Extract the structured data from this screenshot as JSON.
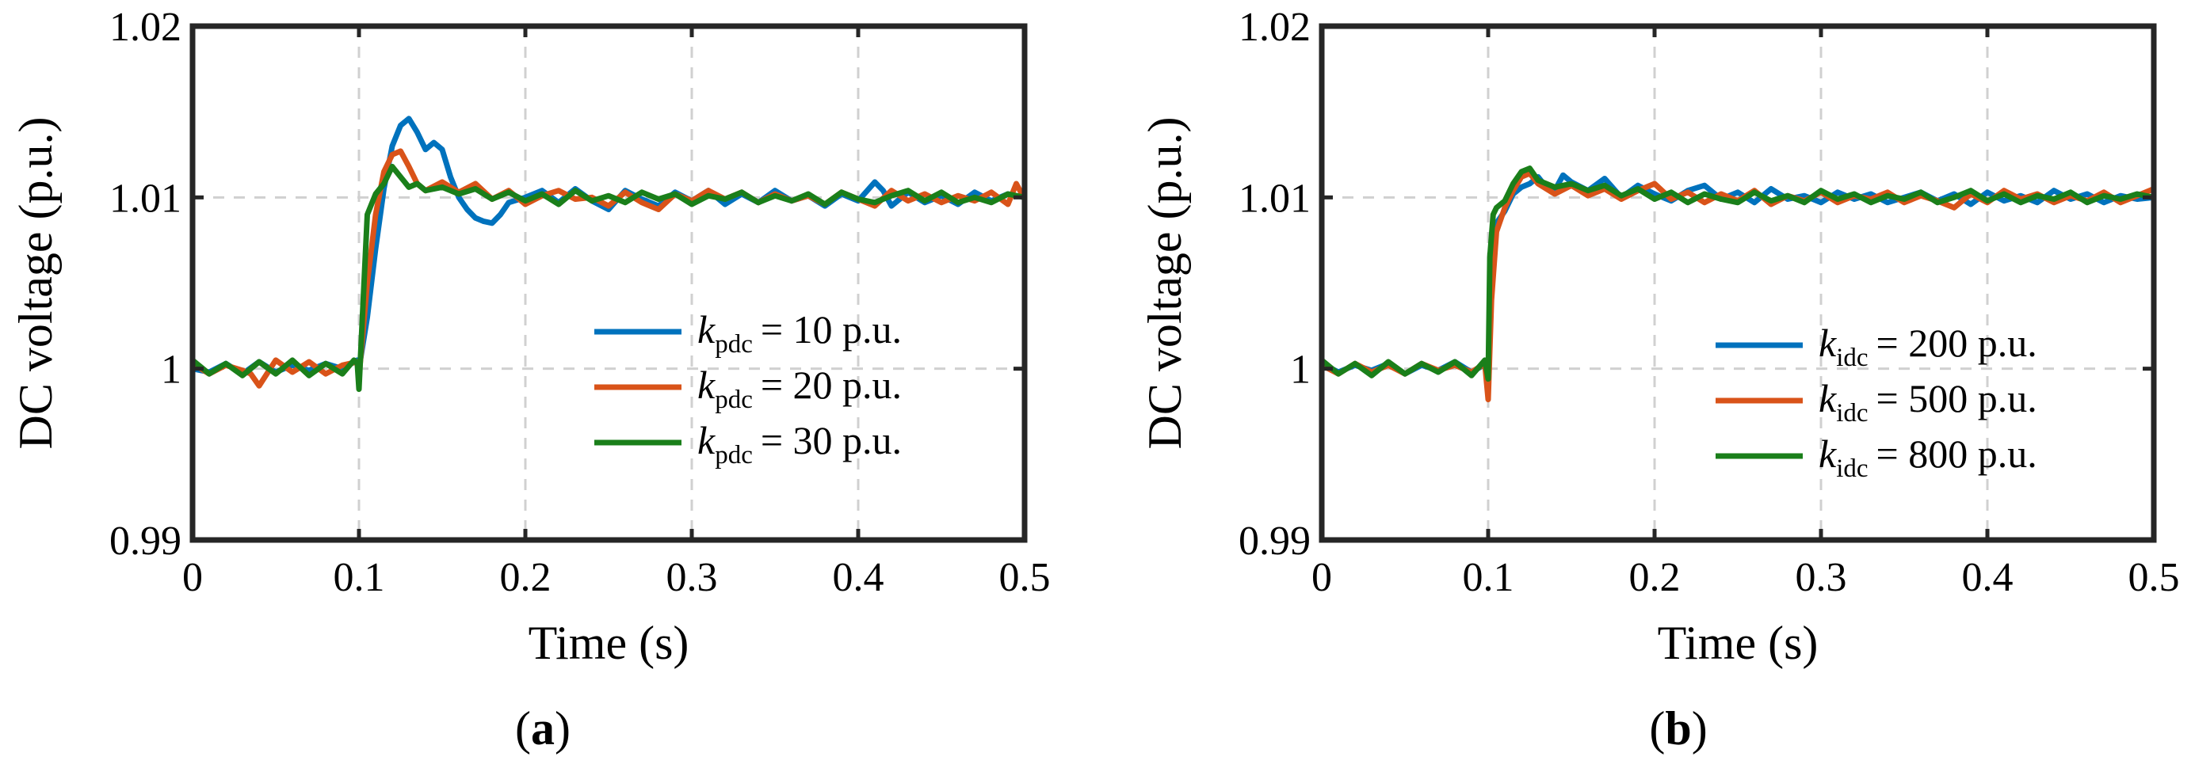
{
  "chart_data": [
    {
      "id": "a",
      "type": "line",
      "panel_label": "a",
      "xlabel": "Time (s)",
      "ylabel": "DC voltage (p.u.)",
      "xlim": [
        0,
        0.5
      ],
      "ylim": [
        0.99,
        1.02
      ],
      "xticks": [
        "0",
        "0.1",
        "0.2",
        "0.3",
        "0.4",
        "0.5"
      ],
      "yticks": [
        "0.99",
        "1",
        "1.01",
        "1.02"
      ],
      "grid": true,
      "legend_position": "center-right",
      "series": [
        {
          "sym": "k",
          "sub": "pdc",
          "value_text": "= 10 p.u.",
          "color": "#0072bd",
          "x": [
            0,
            0.01,
            0.02,
            0.03,
            0.04,
            0.05,
            0.06,
            0.07,
            0.08,
            0.09,
            0.099,
            0.1,
            0.105,
            0.11,
            0.115,
            0.12,
            0.125,
            0.13,
            0.135,
            0.14,
            0.145,
            0.15,
            0.155,
            0.16,
            0.165,
            0.17,
            0.175,
            0.18,
            0.185,
            0.19,
            0.2,
            0.21,
            0.22,
            0.23,
            0.24,
            0.25,
            0.26,
            0.27,
            0.28,
            0.29,
            0.3,
            0.31,
            0.32,
            0.33,
            0.34,
            0.35,
            0.36,
            0.37,
            0.38,
            0.39,
            0.4,
            0.41,
            0.415,
            0.42,
            0.43,
            0.44,
            0.45,
            0.46,
            0.47,
            0.48,
            0.49,
            0.5
          ],
          "y": [
            1.0,
            0.9998,
            1.0003,
            0.9997,
            1.0004,
            0.9998,
            1.0002,
            0.9999,
            1.0003,
            1.0,
            1.0005,
            1.0,
            1.003,
            1.007,
            1.0105,
            1.013,
            1.0142,
            1.0146,
            1.0138,
            1.0128,
            1.0132,
            1.0128,
            1.0112,
            1.01,
            1.0093,
            1.0088,
            1.0086,
            1.0085,
            1.009,
            1.0097,
            1.01,
            1.0104,
            1.0097,
            1.0105,
            1.0098,
            1.0093,
            1.0104,
            1.0099,
            1.0095,
            1.0103,
            1.0098,
            1.0104,
            1.0096,
            1.0102,
            1.0097,
            1.0104,
            1.0098,
            1.0101,
            1.0095,
            1.0102,
            1.0098,
            1.0109,
            1.0104,
            1.0095,
            1.0103,
            1.0097,
            1.0101,
            1.0096,
            1.0103,
            1.0098,
            1.0102,
            1.01
          ]
        },
        {
          "sym": "k",
          "sub": "pdc",
          "value_text": "= 20 p.u.",
          "color": "#d95319",
          "x": [
            0,
            0.01,
            0.02,
            0.03,
            0.035,
            0.04,
            0.05,
            0.06,
            0.07,
            0.08,
            0.09,
            0.099,
            0.1,
            0.105,
            0.11,
            0.115,
            0.12,
            0.125,
            0.13,
            0.135,
            0.14,
            0.15,
            0.16,
            0.17,
            0.18,
            0.19,
            0.2,
            0.21,
            0.22,
            0.23,
            0.24,
            0.25,
            0.26,
            0.27,
            0.28,
            0.29,
            0.3,
            0.31,
            0.32,
            0.33,
            0.34,
            0.35,
            0.36,
            0.37,
            0.38,
            0.39,
            0.4,
            0.41,
            0.42,
            0.43,
            0.44,
            0.45,
            0.46,
            0.47,
            0.48,
            0.49,
            0.495,
            0.5
          ],
          "y": [
            1.0003,
            0.9997,
            1.0002,
            0.9999,
            0.9997,
            0.999,
            1.0005,
            0.9998,
            1.0004,
            0.9997,
            1.0002,
            1.0004,
            0.9995,
            1.005,
            1.009,
            1.0115,
            1.0125,
            1.0127,
            1.0118,
            1.0108,
            1.0104,
            1.0109,
            1.0103,
            1.0108,
            1.0099,
            1.0104,
            1.0096,
            1.0101,
            1.0104,
            1.0099,
            1.01,
            1.0095,
            1.0103,
            1.0097,
            1.0093,
            1.0102,
            1.0098,
            1.0104,
            1.0099,
            1.0103,
            1.0097,
            1.0102,
            1.0098,
            1.0101,
            1.0096,
            1.0103,
            1.0099,
            1.0095,
            1.0104,
            1.0098,
            1.0102,
            1.0097,
            1.0101,
            1.0098,
            1.0103,
            1.0096,
            1.0108,
            1.0099
          ]
        },
        {
          "sym": "k",
          "sub": "pdc",
          "value_text": "= 30 p.u.",
          "color": "#1a7f1a",
          "x": [
            0,
            0.01,
            0.02,
            0.03,
            0.04,
            0.05,
            0.06,
            0.07,
            0.08,
            0.09,
            0.097,
            0.099,
            0.1,
            0.105,
            0.11,
            0.115,
            0.12,
            0.125,
            0.13,
            0.135,
            0.14,
            0.15,
            0.16,
            0.17,
            0.18,
            0.19,
            0.2,
            0.21,
            0.22,
            0.23,
            0.24,
            0.25,
            0.26,
            0.27,
            0.28,
            0.29,
            0.3,
            0.31,
            0.32,
            0.33,
            0.34,
            0.35,
            0.36,
            0.37,
            0.38,
            0.39,
            0.4,
            0.41,
            0.42,
            0.43,
            0.44,
            0.45,
            0.46,
            0.47,
            0.48,
            0.49,
            0.5
          ],
          "y": [
            1.0005,
            0.9997,
            1.0003,
            0.9996,
            1.0004,
            0.9997,
            1.0005,
            0.9996,
            1.0003,
            0.9997,
            1.0005,
            1.0003,
            0.9988,
            1.009,
            1.0102,
            1.0108,
            1.0118,
            1.0112,
            1.0106,
            1.0108,
            1.0104,
            1.0106,
            1.0102,
            1.0105,
            1.0099,
            1.0103,
            1.0098,
            1.0102,
            1.0096,
            1.0104,
            1.0098,
            1.0101,
            1.0097,
            1.0103,
            1.0099,
            1.0102,
            1.0096,
            1.0101,
            1.0099,
            1.0103,
            1.0097,
            1.0101,
            1.0098,
            1.0102,
            1.0096,
            1.0103,
            1.0099,
            1.0097,
            1.0101,
            1.0104,
            1.0098,
            1.0103,
            1.0097,
            1.01,
            1.0097,
            1.0102,
            1.01
          ]
        }
      ]
    },
    {
      "id": "b",
      "type": "line",
      "panel_label": "b",
      "xlabel": "Time (s)",
      "ylabel": "DC voltage (p.u.)",
      "xlim": [
        0,
        0.5
      ],
      "ylim": [
        0.99,
        1.02
      ],
      "xticks": [
        "0",
        "0.1",
        "0.2",
        "0.3",
        "0.4",
        "0.5"
      ],
      "yticks": [
        "0.99",
        "1",
        "1.01",
        "1.02"
      ],
      "grid": true,
      "legend_position": "center-right",
      "series": [
        {
          "sym": "k",
          "sub": "idc",
          "value_text": "= 200 p.u.",
          "color": "#0072bd",
          "x": [
            0,
            0.01,
            0.02,
            0.03,
            0.04,
            0.05,
            0.06,
            0.07,
            0.08,
            0.09,
            0.099,
            0.1,
            0.102,
            0.105,
            0.11,
            0.115,
            0.12,
            0.125,
            0.13,
            0.135,
            0.14,
            0.145,
            0.15,
            0.16,
            0.17,
            0.18,
            0.19,
            0.2,
            0.21,
            0.22,
            0.23,
            0.24,
            0.25,
            0.26,
            0.27,
            0.28,
            0.29,
            0.3,
            0.31,
            0.32,
            0.33,
            0.34,
            0.35,
            0.36,
            0.37,
            0.38,
            0.39,
            0.4,
            0.41,
            0.42,
            0.43,
            0.44,
            0.45,
            0.46,
            0.47,
            0.48,
            0.49,
            0.5
          ],
          "y": [
            1.0003,
            0.9998,
            1.0002,
            0.9999,
            1.0003,
            0.9997,
            1.0002,
            0.9999,
            1.0004,
            0.9998,
            1.0003,
            0.9992,
            1.005,
            1.0085,
            1.0092,
            1.0102,
            1.0106,
            1.0108,
            1.0112,
            1.0106,
            1.0104,
            1.0113,
            1.0109,
            1.0104,
            1.0111,
            1.01,
            1.0107,
            1.0102,
            1.0098,
            1.0104,
            1.0107,
            1.0099,
            1.0103,
            1.0097,
            1.0105,
            1.0099,
            1.0101,
            1.0097,
            1.0103,
            1.0099,
            1.0102,
            1.0097,
            1.01,
            1.0103,
            1.0098,
            1.0102,
            1.0096,
            1.0103,
            1.0098,
            1.0101,
            1.0097,
            1.0104,
            1.0099,
            1.0102,
            1.0097,
            1.0101,
            1.0099,
            1.01
          ]
        },
        {
          "sym": "k",
          "sub": "idc",
          "value_text": "= 500 p.u.",
          "color": "#d95319",
          "x": [
            0,
            0.01,
            0.02,
            0.03,
            0.04,
            0.05,
            0.06,
            0.07,
            0.08,
            0.09,
            0.098,
            0.1,
            0.102,
            0.105,
            0.11,
            0.115,
            0.12,
            0.125,
            0.13,
            0.14,
            0.15,
            0.16,
            0.17,
            0.18,
            0.19,
            0.2,
            0.21,
            0.22,
            0.23,
            0.24,
            0.25,
            0.26,
            0.27,
            0.28,
            0.29,
            0.3,
            0.31,
            0.32,
            0.33,
            0.34,
            0.35,
            0.36,
            0.37,
            0.38,
            0.39,
            0.4,
            0.41,
            0.42,
            0.43,
            0.44,
            0.45,
            0.46,
            0.47,
            0.48,
            0.49,
            0.5
          ],
          "y": [
            1.0002,
            0.9997,
            1.0003,
            0.9998,
            1.0002,
            0.9997,
            1.0003,
            0.9999,
            1.0002,
            0.9998,
            1.0003,
            0.9982,
            1.004,
            1.008,
            1.0094,
            1.0104,
            1.0112,
            1.0114,
            1.0108,
            1.0102,
            1.0107,
            1.0101,
            1.0105,
            1.0099,
            1.0104,
            1.0108,
            1.0099,
            1.0103,
            1.0097,
            1.0102,
            1.0098,
            1.0104,
            1.0096,
            1.0101,
            1.0098,
            1.0103,
            1.0097,
            1.0101,
            1.0099,
            1.0103,
            1.0097,
            1.0101,
            1.0098,
            1.0094,
            1.0102,
            1.0097,
            1.0104,
            1.0099,
            1.0102,
            1.0097,
            1.0101,
            1.0098,
            1.0103,
            1.0097,
            1.0101,
            1.0105
          ]
        },
        {
          "sym": "k",
          "sub": "idc",
          "value_text": "= 800 p.u.",
          "color": "#1a7f1a",
          "x": [
            0,
            0.01,
            0.02,
            0.03,
            0.04,
            0.05,
            0.06,
            0.07,
            0.08,
            0.09,
            0.098,
            0.1,
            0.101,
            0.103,
            0.105,
            0.11,
            0.115,
            0.12,
            0.125,
            0.13,
            0.14,
            0.15,
            0.16,
            0.17,
            0.18,
            0.19,
            0.2,
            0.21,
            0.22,
            0.23,
            0.24,
            0.25,
            0.26,
            0.27,
            0.28,
            0.29,
            0.3,
            0.31,
            0.32,
            0.33,
            0.34,
            0.35,
            0.36,
            0.37,
            0.38,
            0.39,
            0.4,
            0.41,
            0.42,
            0.43,
            0.44,
            0.45,
            0.46,
            0.47,
            0.48,
            0.49,
            0.5
          ],
          "y": [
            1.0005,
            0.9997,
            1.0003,
            0.9996,
            1.0004,
            0.9997,
            1.0003,
            0.9998,
            1.0004,
            0.9996,
            1.0005,
            0.9994,
            1.0065,
            1.009,
            1.0094,
            1.0098,
            1.0108,
            1.0115,
            1.0117,
            1.011,
            1.0106,
            1.0108,
            1.0104,
            1.0107,
            1.0101,
            1.0105,
            1.0099,
            1.0103,
            1.0097,
            1.0102,
            1.0099,
            1.0097,
            1.0103,
            1.0098,
            1.0101,
            1.0097,
            1.0104,
            1.0099,
            1.0102,
            1.0097,
            1.0101,
            1.0099,
            1.0103,
            1.0097,
            1.01,
            1.0104,
            1.0098,
            1.0102,
            1.0097,
            1.0101,
            1.0099,
            1.0103,
            1.0097,
            1.0101,
            1.0099,
            1.0102,
            1.01
          ]
        }
      ]
    }
  ]
}
